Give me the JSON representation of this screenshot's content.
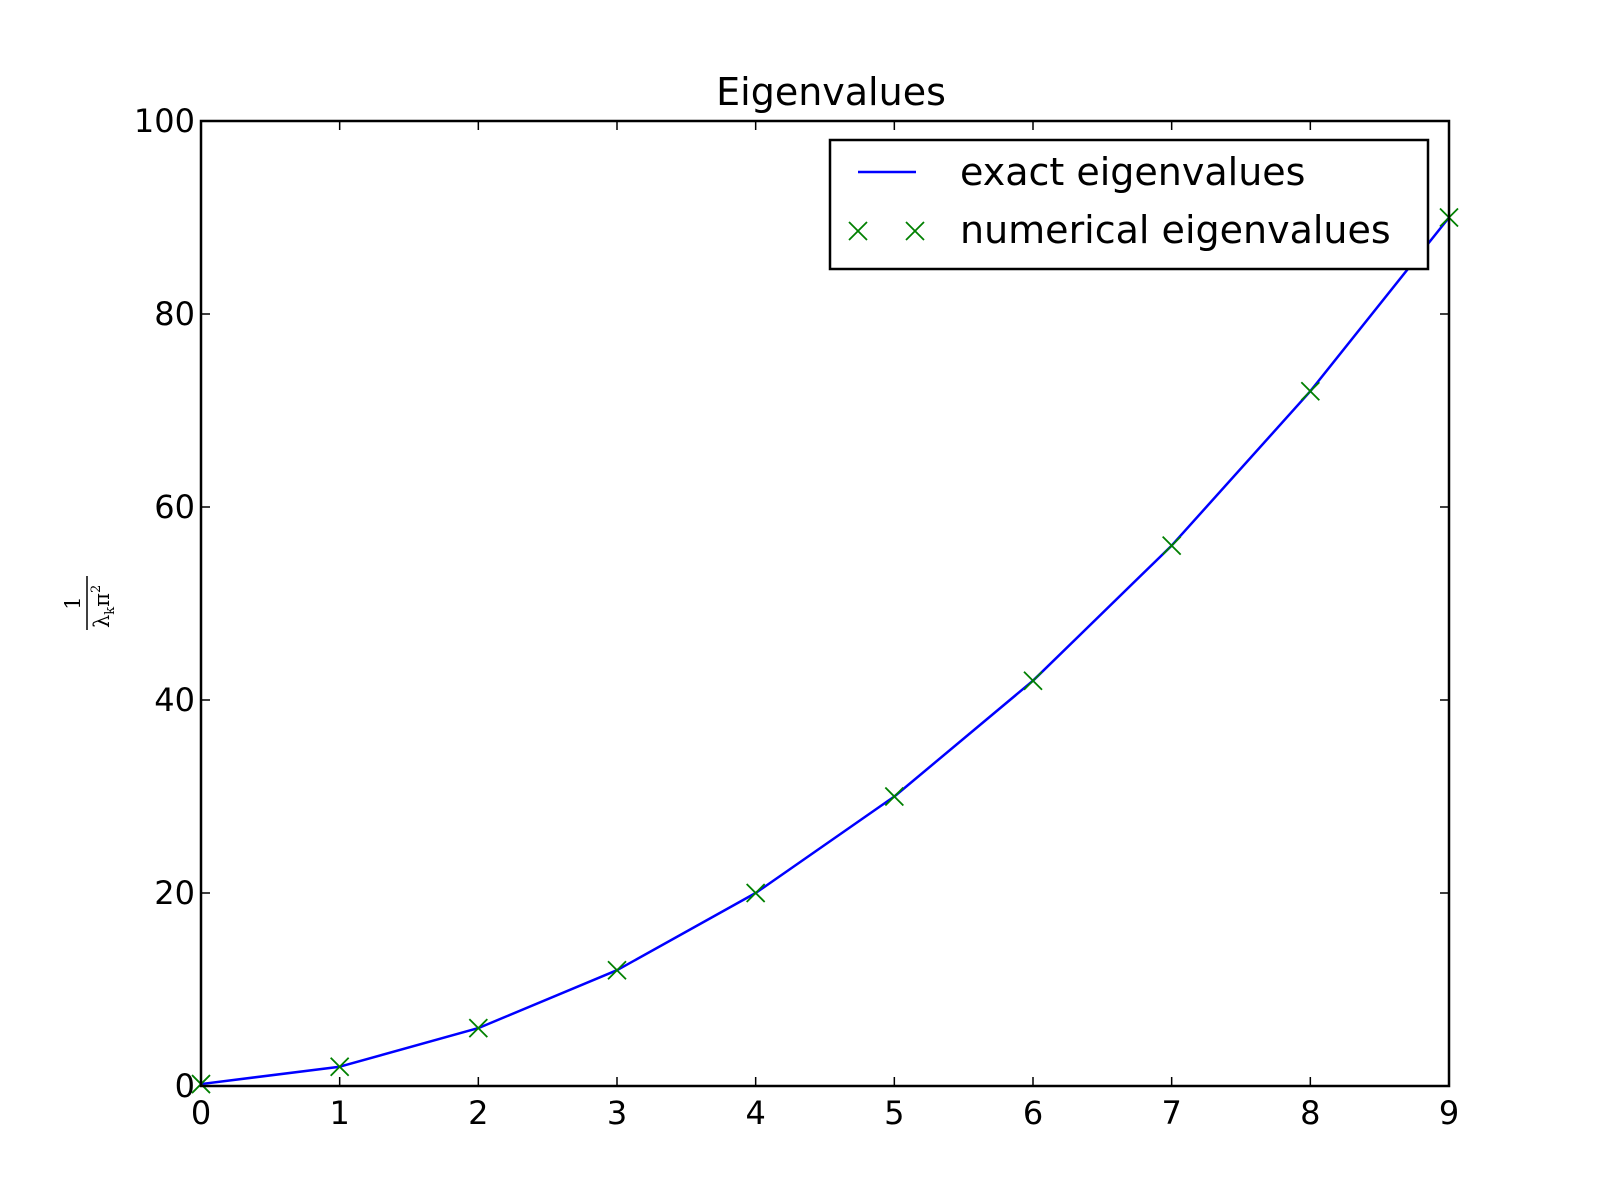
{
  "chart_data": {
    "type": "line",
    "title": "Eigenvalues",
    "xlabel": "",
    "ylabel": {
      "numerator": "1",
      "lambda": "λ",
      "subscript": "k",
      "pi": "π",
      "exponent": "2"
    },
    "xlim": [
      0,
      9
    ],
    "ylim": [
      0,
      100
    ],
    "x_ticks": [
      "0",
      "1",
      "2",
      "3",
      "4",
      "5",
      "6",
      "7",
      "8",
      "9"
    ],
    "y_ticks": [
      "0",
      "20",
      "40",
      "60",
      "80",
      "100"
    ],
    "x": [
      0,
      1,
      2,
      3,
      4,
      5,
      6,
      7,
      8,
      9
    ],
    "series": [
      {
        "name": "exact eigenvalues",
        "style": "line",
        "color": "#0000ff",
        "values": [
          0.2,
          2,
          6,
          12,
          20,
          30,
          42,
          56,
          72,
          90
        ]
      },
      {
        "name": "numerical eigenvalues",
        "style": "x-marker",
        "color": "#008000",
        "values": [
          0.2,
          2,
          6,
          12,
          20,
          30,
          42,
          56,
          72,
          90
        ]
      }
    ],
    "grid": false,
    "legend": "top-right"
  }
}
